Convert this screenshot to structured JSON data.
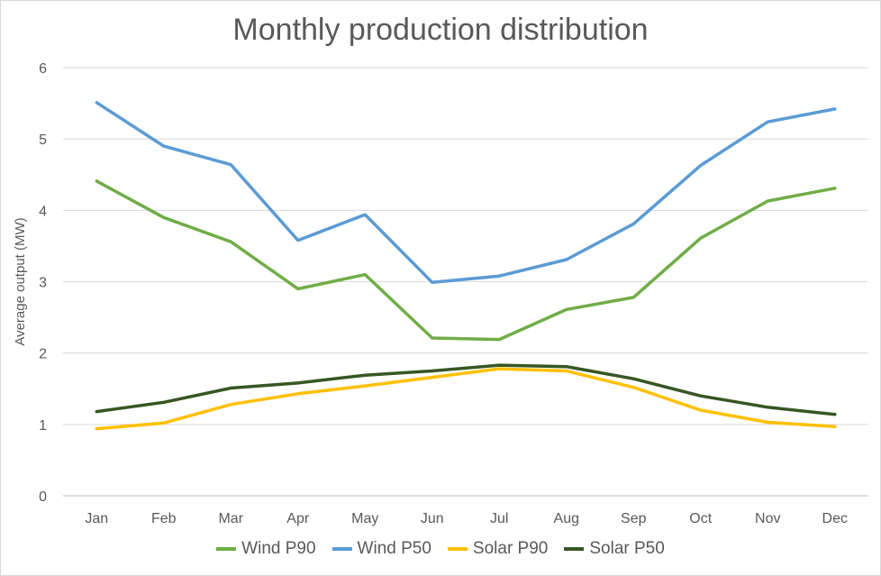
{
  "chart_data": {
    "type": "line",
    "title": "Monthly production distribution",
    "xlabel": "",
    "ylabel": "Average output (MW)",
    "ylim": [
      0,
      6
    ],
    "yticks": [
      "0",
      "1",
      "2",
      "3",
      "4",
      "5",
      "6"
    ],
    "categories": [
      "Jan",
      "Feb",
      "Mar",
      "Apr",
      "May",
      "Jun",
      "Jul",
      "Aug",
      "Sep",
      "Oct",
      "Nov",
      "Dec"
    ],
    "grid": true,
    "legend": "bottom",
    "series": [
      {
        "name": "Wind P90",
        "color": "#70ad47",
        "values": [
          4.41,
          3.9,
          3.56,
          2.9,
          3.1,
          2.21,
          2.19,
          2.61,
          2.78,
          3.61,
          4.13,
          4.31
        ]
      },
      {
        "name": "Wind P50",
        "color": "#5b9bd5",
        "values": [
          5.51,
          4.9,
          4.64,
          3.58,
          3.94,
          2.99,
          3.08,
          3.31,
          3.81,
          4.63,
          5.24,
          5.42
        ]
      },
      {
        "name": "Solar P90",
        "color": "#ffc000",
        "values": [
          0.94,
          1.02,
          1.28,
          1.43,
          1.54,
          1.66,
          1.78,
          1.75,
          1.52,
          1.2,
          1.03,
          0.97
        ]
      },
      {
        "name": "Solar P50",
        "color": "#375623",
        "values": [
          1.18,
          1.31,
          1.51,
          1.58,
          1.69,
          1.75,
          1.83,
          1.81,
          1.64,
          1.4,
          1.24,
          1.14
        ]
      }
    ]
  }
}
